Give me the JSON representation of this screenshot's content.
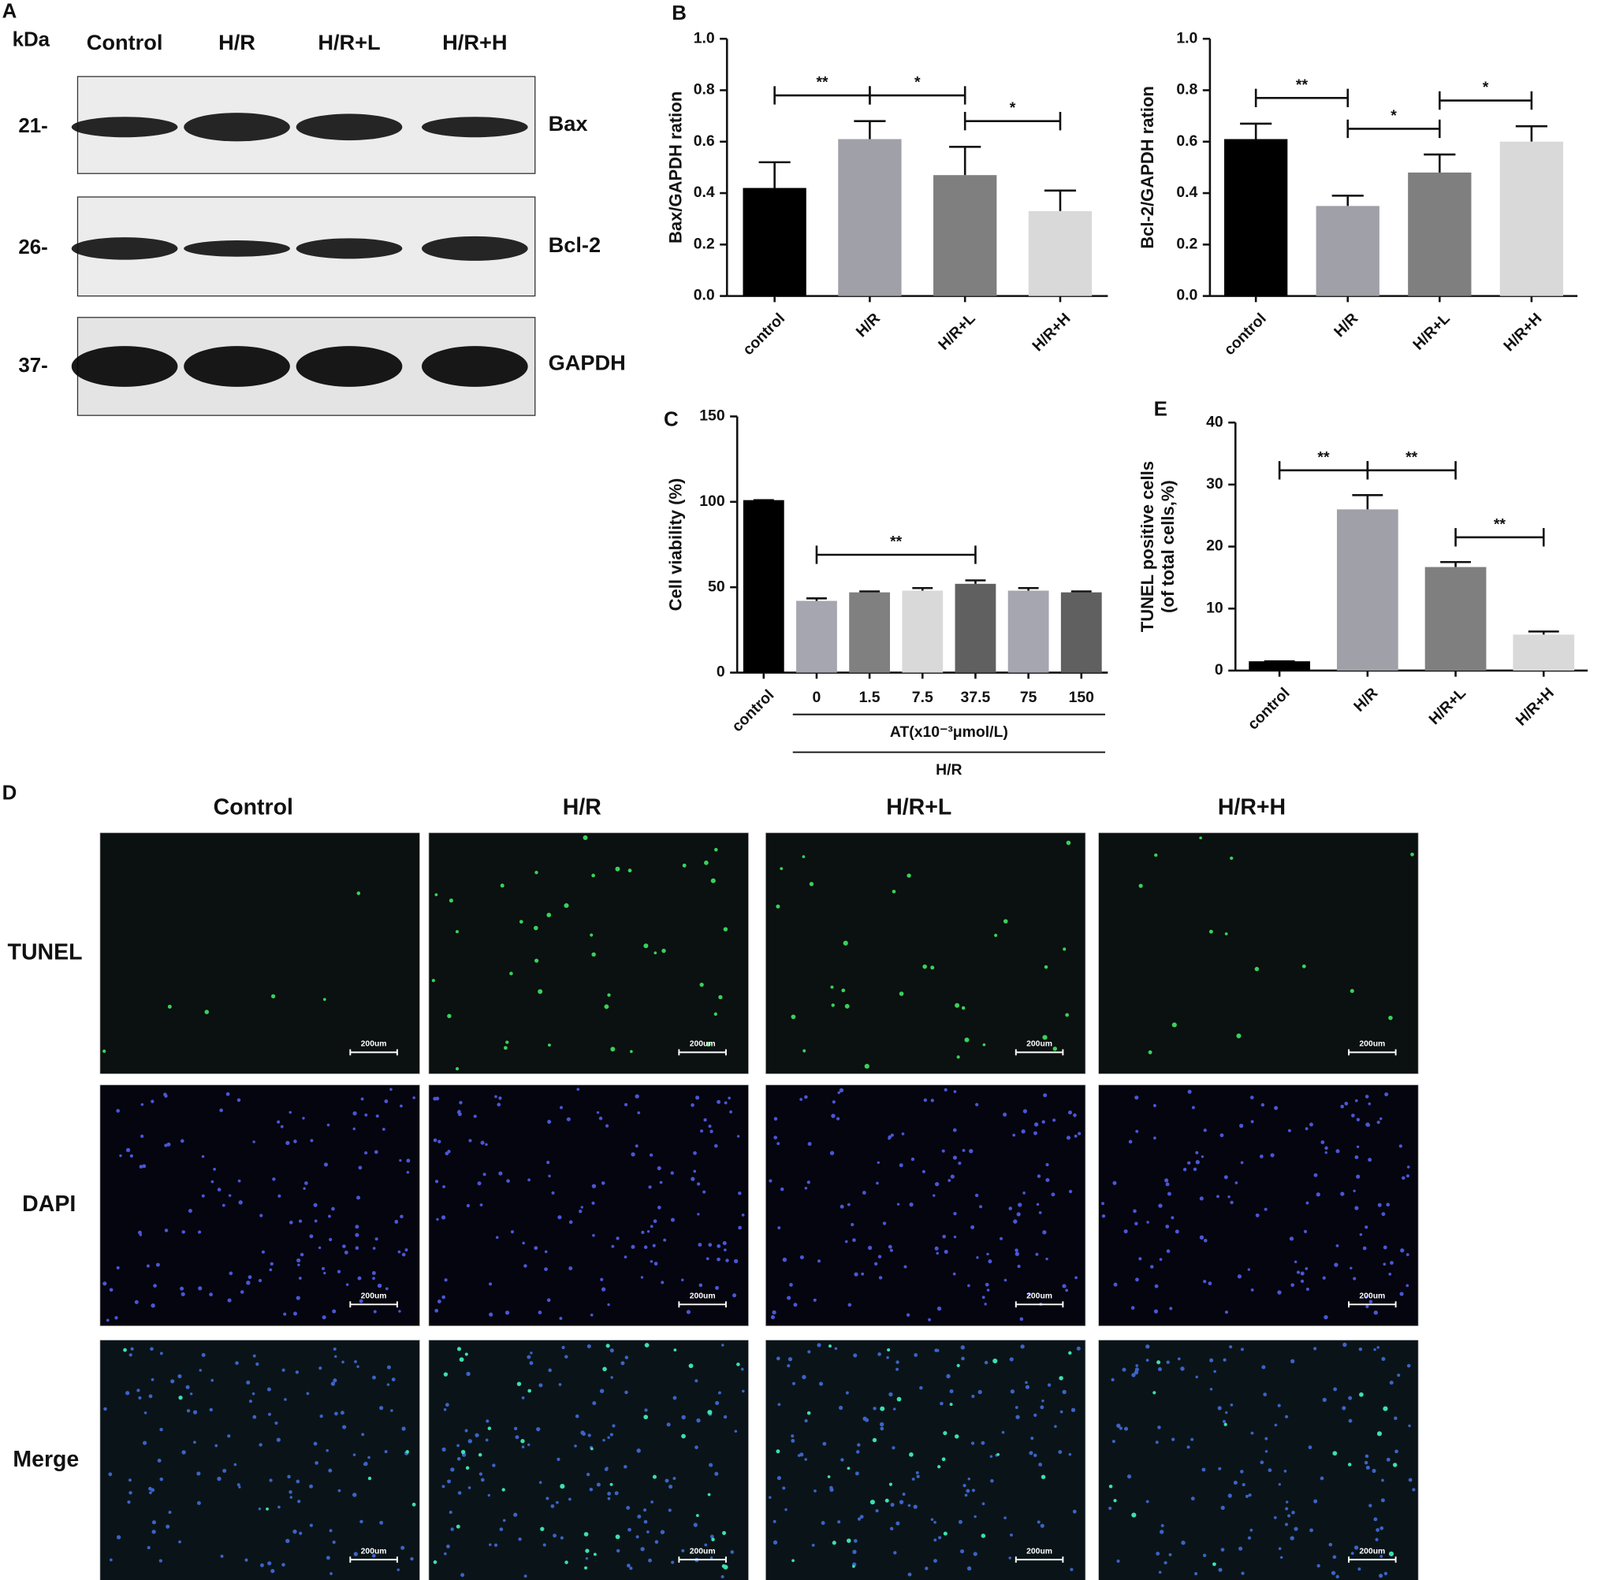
{
  "blot": {
    "panel": "A",
    "unit": "kDa",
    "lanes": [
      "Control",
      "H/R",
      "H/R+L",
      "H/R+H"
    ],
    "rows": [
      {
        "marker": "21-",
        "protein": "Bax"
      },
      {
        "marker": "26-",
        "protein": "Bcl-2"
      },
      {
        "marker": "37-",
        "protein": "GAPDH"
      }
    ]
  },
  "chart_data": [
    {
      "type": "bar",
      "panel": "B",
      "ylabel": [
        "Bax/GAPDH ration"
      ],
      "categories": [
        "control",
        "H/R",
        "H/R+L",
        "H/R+H"
      ],
      "values": [
        0.42,
        0.61,
        0.47,
        0.33
      ],
      "errors": [
        0.1,
        0.07,
        0.11,
        0.08
      ],
      "colors": [
        "#000000",
        "#a0a0a8",
        "#7f7f7f",
        "#d9d9d9"
      ],
      "ylim": [
        0,
        1
      ],
      "yticks": [
        {
          "value": 0,
          "label": "0.0"
        },
        {
          "value": 0.2,
          "label": "0.2"
        },
        {
          "value": 0.4,
          "label": "0.4"
        },
        {
          "value": 0.6,
          "label": "0.6"
        },
        {
          "value": 0.8,
          "label": "0.8"
        },
        {
          "value": 1,
          "label": "1.0"
        }
      ],
      "annotations": [
        {
          "text": "**",
          "from": "control",
          "to": "H/R"
        },
        {
          "text": "*",
          "from": "H/R",
          "to": "H/R+L"
        },
        {
          "text": "*",
          "from": "H/R+L",
          "to": "H/R+H"
        }
      ]
    },
    {
      "type": "bar",
      "ylabel": [
        "Bcl-2/GAPDH ration"
      ],
      "categories": [
        "control",
        "H/R",
        "H/R+L",
        "H/R+H"
      ],
      "values": [
        0.61,
        0.35,
        0.48,
        0.6
      ],
      "errors": [
        0.06,
        0.04,
        0.07,
        0.06
      ],
      "colors": [
        "#000000",
        "#a0a0a8",
        "#7f7f7f",
        "#d9d9d9"
      ],
      "ylim": [
        0,
        1
      ],
      "yticks": [
        {
          "value": 0,
          "label": "0.0"
        },
        {
          "value": 0.2,
          "label": "0.2"
        },
        {
          "value": 0.4,
          "label": "0.4"
        },
        {
          "value": 0.6,
          "label": "0.6"
        },
        {
          "value": 0.8,
          "label": "0.8"
        },
        {
          "value": 1,
          "label": "1.0"
        }
      ],
      "annotations": [
        {
          "text": "**",
          "from": "control",
          "to": "H/R"
        },
        {
          "text": "*",
          "from": "H/R",
          "to": "H/R+L"
        },
        {
          "text": "*",
          "from": "H/R+L",
          "to": "H/R+H"
        }
      ]
    },
    {
      "type": "bar",
      "panel": "C",
      "ylabel": [
        "Cell viability (%)"
      ],
      "categories": [
        "control",
        "0",
        "1.5",
        "7.5",
        "37.5",
        "75",
        "150"
      ],
      "values": [
        101,
        42,
        47,
        48,
        52,
        48,
        47
      ],
      "errors": [
        0,
        1.5,
        0.5,
        1.5,
        2,
        1.5,
        0.5
      ],
      "colors": [
        "#000000",
        "#a6a6b0",
        "#808080",
        "#d9d9d9",
        "#606060",
        "#a6a6b0",
        "#606060"
      ],
      "ylim": [
        0,
        150
      ],
      "yticks": [
        0,
        50,
        100,
        150
      ],
      "groups": [
        {
          "label": "AT(x10⁻³μmol/L)",
          "from": "0",
          "to": "150"
        },
        {
          "label": "H/R",
          "from": "0",
          "to": "150"
        }
      ],
      "annotations": [
        {
          "text": "**",
          "from": "0",
          "to": "37.5"
        }
      ]
    },
    {
      "type": "bar",
      "panel": "E",
      "ylabel": [
        "TUNEL positive cells",
        "(of total cells,%)"
      ],
      "categories": [
        "control",
        "H/R",
        "H/R+L",
        "H/R+H"
      ],
      "values": [
        1.5,
        26,
        16.7,
        5.8
      ],
      "errors": [
        0,
        2.3,
        0.8,
        0.5
      ],
      "colors": [
        "#000000",
        "#a0a0a8",
        "#7f7f7f",
        "#d9d9d9"
      ],
      "ylim": [
        0,
        40
      ],
      "yticks": [
        0,
        10,
        20,
        30,
        40
      ],
      "annotations": [
        {
          "text": "**",
          "from": "control",
          "to": "H/R"
        },
        {
          "text": "**",
          "from": "H/R",
          "to": "H/R+L"
        },
        {
          "text": "**",
          "from": "H/R+L",
          "to": "H/R+H"
        }
      ]
    }
  ],
  "microscopy": {
    "panel": "D",
    "columns": [
      "Control",
      "H/R",
      "H/R+L",
      "H/R+H"
    ],
    "rows": [
      "TUNEL",
      "DAPI",
      "Merge"
    ],
    "scale_bar": "200um"
  }
}
